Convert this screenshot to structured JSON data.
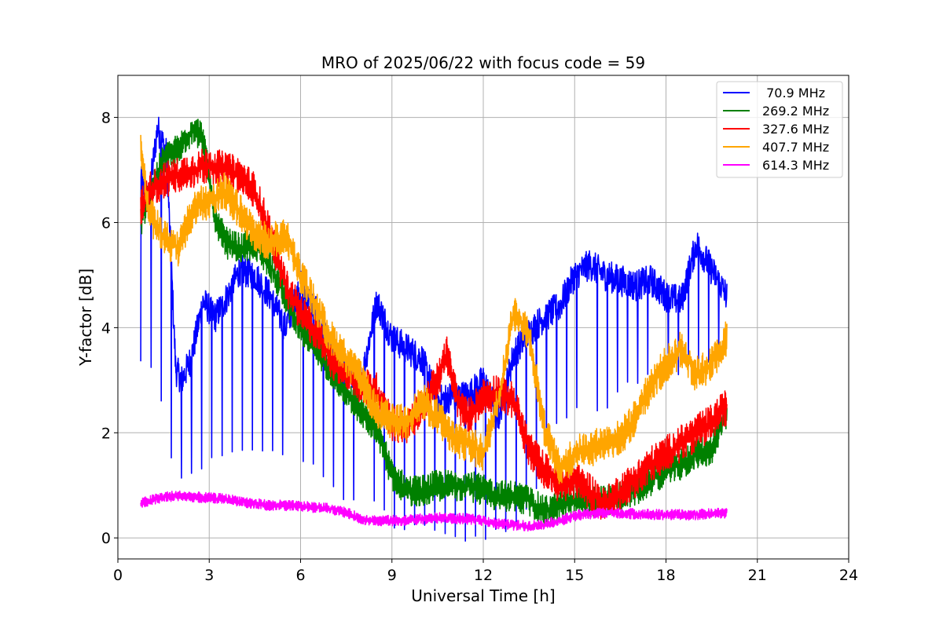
{
  "chart_data": {
    "type": "line",
    "title": "MRO of 2025/06/22 with focus code = 59",
    "xlabel": "Universal Time [h]",
    "ylabel": "Y-factor [dB]",
    "xlim": [
      0,
      24
    ],
    "ylim": [
      -0.4,
      8.8
    ],
    "xticks": [
      0,
      3,
      6,
      9,
      12,
      15,
      18,
      21,
      24
    ],
    "yticks": [
      0,
      2,
      4,
      6,
      8
    ],
    "grid": true,
    "legend_position": "top-right",
    "series": [
      {
        "name": " 70.9 MHz",
        "color": "#0000ff",
        "x": [
          0.75,
          1.0,
          1.3,
          1.6,
          1.9,
          2.1,
          2.4,
          2.8,
          3.2,
          3.6,
          4.0,
          4.5,
          5.0,
          5.5,
          6.0,
          6.5,
          7.0,
          7.5,
          8.0,
          8.5,
          9.0,
          9.5,
          10.0,
          10.5,
          11.0,
          11.5,
          12.0,
          12.5,
          13.0,
          13.5,
          14.0,
          14.5,
          15.0,
          15.5,
          16.0,
          16.5,
          17.0,
          17.5,
          18.0,
          18.5,
          19.0,
          19.5,
          20.0
        ],
        "y": [
          6.8,
          6.4,
          7.8,
          7.3,
          3.2,
          3.0,
          3.4,
          4.5,
          4.2,
          4.6,
          5.1,
          5.0,
          4.6,
          4.0,
          4.8,
          4.3,
          3.5,
          3.2,
          3.0,
          4.5,
          3.8,
          3.6,
          3.4,
          2.6,
          2.7,
          2.7,
          3.0,
          2.3,
          3.5,
          3.9,
          4.2,
          4.4,
          5.0,
          5.2,
          5.0,
          4.9,
          4.8,
          4.9,
          4.6,
          4.5,
          5.6,
          5.1,
          4.6
        ],
        "drop_min": [
          3.4,
          3.3,
          3.2,
          1.8,
          1.2,
          1.1,
          1.3,
          1.4,
          1.5,
          1.5,
          1.6,
          1.6,
          1.6,
          1.5,
          1.5,
          1.3,
          0.9,
          0.8,
          0.7,
          0.7,
          0.3,
          0.2,
          0.2,
          0.1,
          0.1,
          0.0,
          0.0,
          0.1,
          0.3,
          0.5,
          1.6,
          2.3,
          2.4,
          2.4,
          2.5,
          2.8,
          3.0,
          3.1,
          3.1,
          3.2,
          3.3,
          3.3,
          3.5
        ]
      },
      {
        "name": "269.2 MHz",
        "color": "#008000",
        "x": [
          0.75,
          1.0,
          1.5,
          2.0,
          2.5,
          2.8,
          3.2,
          3.6,
          4.0,
          4.5,
          5.0,
          5.5,
          6.0,
          6.5,
          7.0,
          7.5,
          8.0,
          8.5,
          9.0,
          9.5,
          10.0,
          10.5,
          11.0,
          11.5,
          12.0,
          12.5,
          13.0,
          13.5,
          14.0,
          14.5,
          15.0,
          15.5,
          16.0,
          16.5,
          17.0,
          17.5,
          18.0,
          18.5,
          19.0,
          19.5,
          20.0
        ],
        "y": [
          6.0,
          6.5,
          7.2,
          7.4,
          7.8,
          7.6,
          6.0,
          5.6,
          5.5,
          5.6,
          5.2,
          4.6,
          4.0,
          3.6,
          3.2,
          2.8,
          2.4,
          2.1,
          1.2,
          0.9,
          0.9,
          1.0,
          1.0,
          1.0,
          0.9,
          0.8,
          0.8,
          0.7,
          0.5,
          0.6,
          0.7,
          0.7,
          0.7,
          0.8,
          0.9,
          1.1,
          1.3,
          1.4,
          1.6,
          1.7,
          2.4
        ],
        "noise": 0.3
      },
      {
        "name": "327.6 MHz",
        "color": "#ff0000",
        "x": [
          0.75,
          1.0,
          1.5,
          2.0,
          2.5,
          3.0,
          3.5,
          4.0,
          4.5,
          5.0,
          5.5,
          6.0,
          6.5,
          7.0,
          7.5,
          8.0,
          8.5,
          9.0,
          9.5,
          10.0,
          10.5,
          10.8,
          11.2,
          11.5,
          12.0,
          12.5,
          13.0,
          13.5,
          14.0,
          14.5,
          15.0,
          15.5,
          16.0,
          16.5,
          17.0,
          17.5,
          18.0,
          18.5,
          19.0,
          19.5,
          20.0
        ],
        "y": [
          6.3,
          6.6,
          6.8,
          6.9,
          7.0,
          7.1,
          7.0,
          6.9,
          6.6,
          5.8,
          4.8,
          4.3,
          3.9,
          3.4,
          3.1,
          2.9,
          2.8,
          2.2,
          2.1,
          2.5,
          3.0,
          3.5,
          2.5,
          2.3,
          2.7,
          2.8,
          2.6,
          1.7,
          1.3,
          1.0,
          1.1,
          0.9,
          0.6,
          0.9,
          1.1,
          1.4,
          1.6,
          1.8,
          2.0,
          2.2,
          2.5
        ],
        "noise": 0.35
      },
      {
        "name": "407.7 MHz",
        "color": "#ffa500",
        "x": [
          0.75,
          1.0,
          1.5,
          2.0,
          2.5,
          3.0,
          3.5,
          4.0,
          4.5,
          5.0,
          5.5,
          6.0,
          6.5,
          7.0,
          7.5,
          8.0,
          8.5,
          9.0,
          9.5,
          10.0,
          10.5,
          11.0,
          11.5,
          12.0,
          12.5,
          13.0,
          13.5,
          14.0,
          14.5,
          15.0,
          15.5,
          16.0,
          16.5,
          17.0,
          17.5,
          18.0,
          18.5,
          19.0,
          19.5,
          20.0
        ],
        "y": [
          7.4,
          6.2,
          5.7,
          5.5,
          6.3,
          6.4,
          6.6,
          6.2,
          5.8,
          5.6,
          5.8,
          5.0,
          4.4,
          3.8,
          3.4,
          3.0,
          2.4,
          2.2,
          2.2,
          2.6,
          2.3,
          1.9,
          1.8,
          1.6,
          2.6,
          4.3,
          3.9,
          2.1,
          1.3,
          1.6,
          1.7,
          1.8,
          1.9,
          2.3,
          2.9,
          3.3,
          3.6,
          3.1,
          3.3,
          3.8
        ],
        "noise": 0.35
      },
      {
        "name": "614.3 MHz",
        "color": "#ff00ff",
        "x": [
          0.75,
          1.0,
          1.5,
          2.0,
          2.5,
          3.0,
          3.5,
          4.0,
          4.5,
          5.0,
          5.5,
          6.0,
          6.5,
          7.0,
          7.5,
          8.0,
          8.5,
          9.0,
          9.5,
          10.0,
          10.5,
          11.0,
          11.5,
          12.0,
          12.5,
          13.0,
          13.5,
          14.0,
          14.5,
          15.0,
          15.5,
          16.0,
          16.5,
          17.0,
          17.5,
          18.0,
          18.5,
          19.0,
          19.5,
          20.0
        ],
        "y": [
          0.65,
          0.7,
          0.78,
          0.8,
          0.78,
          0.76,
          0.74,
          0.7,
          0.65,
          0.62,
          0.62,
          0.6,
          0.58,
          0.55,
          0.48,
          0.36,
          0.33,
          0.33,
          0.34,
          0.36,
          0.38,
          0.37,
          0.36,
          0.33,
          0.27,
          0.24,
          0.23,
          0.26,
          0.32,
          0.42,
          0.46,
          0.48,
          0.47,
          0.46,
          0.45,
          0.44,
          0.44,
          0.44,
          0.46,
          0.48
        ],
        "noise": 0.1
      }
    ]
  }
}
